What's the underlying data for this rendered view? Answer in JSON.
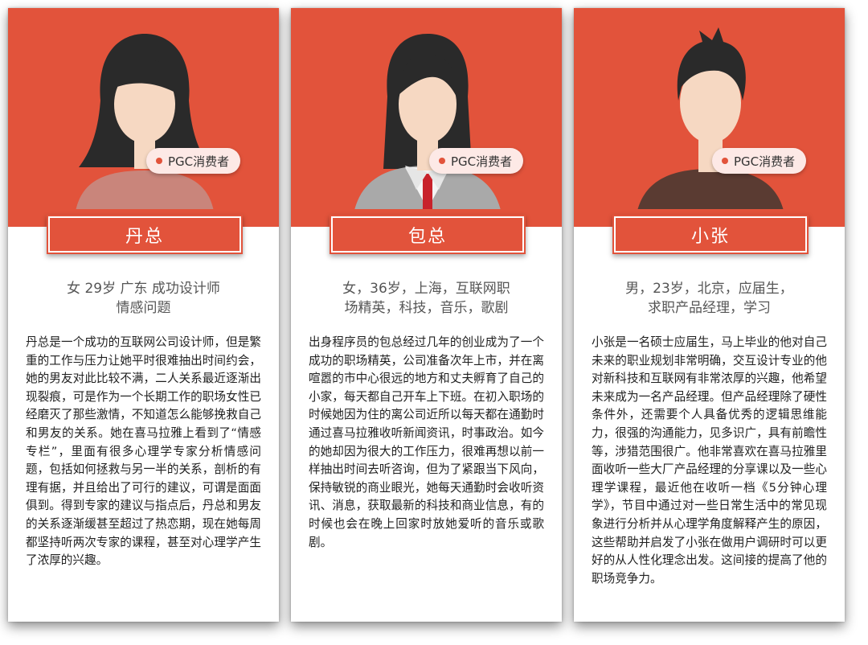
{
  "colors": {
    "accent": "#e2533b",
    "badge_bg": "#fde9e6"
  },
  "personas": [
    {
      "name": "丹总",
      "badge": "PGC消费者",
      "summary_line1": "女 29岁 广东 成功设计师",
      "summary_line2": "情感问题",
      "bio": "丹总是一个成功的互联网公司设计师，但是繁重的工作与压力让她平时很难抽出时间约会，她的男友对此比较不满，二人关系最近逐渐出现裂痕，可是作为一个长期工作的职场女性已经磨灭了那些激情，不知道怎么能够挽救自己和男友的关系。她在喜马拉雅上看到了“情感专栏”，里面有很多心理学专家分析情感问题，包括如何拯救与另一半的关系，剖析的有理有据，并且给出了可行的建议，可谓是面面俱到。得到专家的建议与指点后，丹总和男友的关系逐渐缓甚至超过了热恋期，现在她每周都坚持听两次专家的课程，甚至对心理学产生了浓厚的兴趣。"
    },
    {
      "name": "包总",
      "badge": "PGC消费者",
      "summary_line1": "女，36岁，上海，互联网职",
      "summary_line2": "场精英，科技，音乐，歌剧",
      "bio": "出身程序员的包总经过几年的创业成为了一个成功的职场精英，公司准备次年上市，并在离喧嚣的市中心很远的地方和丈夫孵育了自己的小家，每天都自己开车上下班。在初入职场的时候她因为住的离公司近所以每天都在通勤时通过喜马拉雅收听新闻资讯，时事政治。如今的她却因为很大的工作压力，很难再想以前一样抽出时间去听咨询，但为了紧跟当下风向，保持敏锐的商业眼光，她每天通勤时会收听资讯、消息，获取最新的科技和商业信息，有的时候也会在晚上回家时放她爱听的音乐或歌剧。"
    },
    {
      "name": "小张",
      "badge": "PGC消费者",
      "summary_line1": "男，23岁，北京，应届生，",
      "summary_line2": "求职产品经理，学习",
      "bio": "小张是一名硕士应届生，马上毕业的他对自己未来的职业规划非常明确，交互设计专业的他对新科技和互联网有非常浓厚的兴趣，他希望未来成为一名产品经理。但产品经理除了硬性条件外，还需要个人具备优秀的逻辑思维能力，很强的沟通能力，见多识广，具有前瞻性等，涉猎范围很广。他非常喜欢在喜马拉雅里面收听一些大厂产品经理的分享课以及一些心理学课程，最近他在收听一档《5分钟心理学》，节目中通过对一些日常生活中的常见现象进行分析并从心理学角度解释产生的原因，这些帮助并启发了小张在做用户调研时可以更好的从人性化理念出发。这间接的提高了他的职场竞争力。"
    }
  ]
}
